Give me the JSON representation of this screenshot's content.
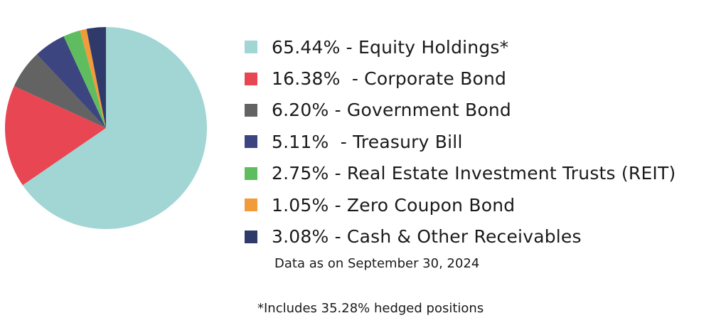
{
  "chart_data": {
    "type": "pie",
    "start_angle_deg": 0,
    "direction": "clockwise",
    "slices": [
      {
        "label": "65.44% - Equity Holdings*",
        "value": 65.44,
        "color": "#a1d6d5"
      },
      {
        "label": "16.38%  - Corporate Bond",
        "value": 16.38,
        "color": "#e84652"
      },
      {
        "label": "6.20% - Government Bond",
        "value": 6.2,
        "color": "#636363"
      },
      {
        "label": "5.11%  - Treasury Bill",
        "value": 5.11,
        "color": "#3c4580"
      },
      {
        "label": "2.75% - Real Estate Investment Trusts (REIT)",
        "value": 2.75,
        "color": "#5fbd5f"
      },
      {
        "label": "1.05% - Zero Coupon Bond",
        "value": 1.05,
        "color": "#f19b3b"
      },
      {
        "label": "3.08% - Cash & Other Receivables",
        "value": 3.08,
        "color": "#2f3a6a"
      }
    ],
    "legend_position": "right",
    "notes": {
      "date": "Data as on September 30, 2024",
      "hedged": "*Includes 35.28% hedged positions"
    }
  }
}
